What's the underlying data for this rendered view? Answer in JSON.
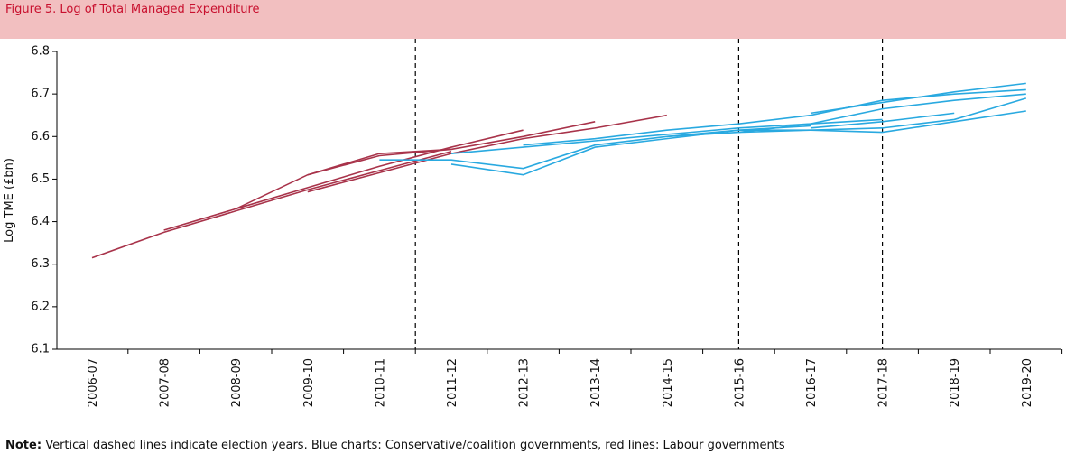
{
  "chart_data": {
    "type": "line",
    "title": "Figure 5. Log of Total Managed Expenditure",
    "y_label": "Log TME (£bn)",
    "note_label": "Note:",
    "note": "Vertical dashed lines indicate election years. Blue charts: Conservative/coalition governments, red lines: Labour governments",
    "categories": [
      "2006-07",
      "2007-08",
      "2008-09",
      "2009-10",
      "2010-11",
      "2011-12",
      "2012-13",
      "2013-14",
      "2014-15",
      "2015-16",
      "2016-17",
      "2017-18",
      "2018-19",
      "2019-20"
    ],
    "ylim": [
      6.1,
      6.8
    ],
    "yticks": [
      6.1,
      6.2,
      6.3,
      6.4,
      6.5,
      6.6,
      6.7,
      6.8
    ],
    "election_markers": [
      4.5,
      9,
      11
    ],
    "series": [
      {
        "color": "#a8334a",
        "values": [
          6.315,
          6.375,
          6.425,
          6.475,
          6.52,
          6.565,
          null,
          null,
          null,
          null,
          null,
          null,
          null,
          null
        ]
      },
      {
        "color": "#a8334a",
        "values": [
          null,
          6.38,
          6.43,
          6.51,
          6.555,
          6.57,
          null,
          null,
          null,
          null,
          null,
          null,
          null,
          null
        ]
      },
      {
        "color": "#a8334a",
        "values": [
          null,
          null,
          6.43,
          6.48,
          6.53,
          6.575,
          6.615,
          null,
          null,
          null,
          null,
          null,
          null,
          null
        ]
      },
      {
        "color": "#a8334a",
        "values": [
          null,
          null,
          null,
          6.51,
          6.56,
          6.57,
          6.6,
          6.635,
          null,
          null,
          null,
          null,
          null,
          null
        ]
      },
      {
        "color": "#a8334a",
        "values": [
          null,
          null,
          null,
          6.47,
          6.515,
          6.56,
          6.595,
          6.62,
          6.65,
          null,
          null,
          null,
          null,
          null
        ]
      },
      {
        "color": "#29a9e0",
        "values": [
          null,
          null,
          null,
          null,
          6.545,
          6.545,
          6.525,
          6.58,
          6.6,
          6.615,
          null,
          null,
          null,
          null
        ]
      },
      {
        "color": "#29a9e0",
        "values": [
          null,
          null,
          null,
          null,
          null,
          6.535,
          6.51,
          6.575,
          6.595,
          6.615,
          6.625,
          null,
          null,
          null
        ]
      },
      {
        "color": "#29a9e0",
        "values": [
          null,
          null,
          null,
          null,
          null,
          6.56,
          6.575,
          6.59,
          6.605,
          6.62,
          6.63,
          6.64,
          null,
          null
        ]
      },
      {
        "color": "#29a9e0",
        "values": [
          null,
          null,
          null,
          null,
          null,
          null,
          6.58,
          6.595,
          6.615,
          6.63,
          6.65,
          6.685,
          6.7,
          6.71
        ]
      },
      {
        "color": "#29a9e0",
        "values": [
          null,
          null,
          null,
          null,
          null,
          null,
          null,
          null,
          6.6,
          6.61,
          6.615,
          6.62,
          6.64,
          6.69
        ]
      },
      {
        "color": "#29a9e0",
        "values": [
          null,
          null,
          null,
          null,
          null,
          null,
          null,
          null,
          null,
          6.615,
          6.615,
          6.61,
          6.635,
          6.66
        ]
      },
      {
        "color": "#29a9e0",
        "values": [
          null,
          null,
          null,
          null,
          null,
          null,
          null,
          null,
          null,
          null,
          6.655,
          6.68,
          6.705,
          6.725
        ]
      },
      {
        "color": "#29a9e0",
        "values": [
          null,
          null,
          null,
          null,
          null,
          null,
          null,
          null,
          null,
          6.61,
          6.63,
          6.665,
          6.685,
          6.7
        ]
      },
      {
        "color": "#29a9e0",
        "values": [
          null,
          null,
          null,
          null,
          null,
          null,
          null,
          null,
          null,
          null,
          6.62,
          6.635,
          6.655,
          null
        ]
      }
    ]
  }
}
